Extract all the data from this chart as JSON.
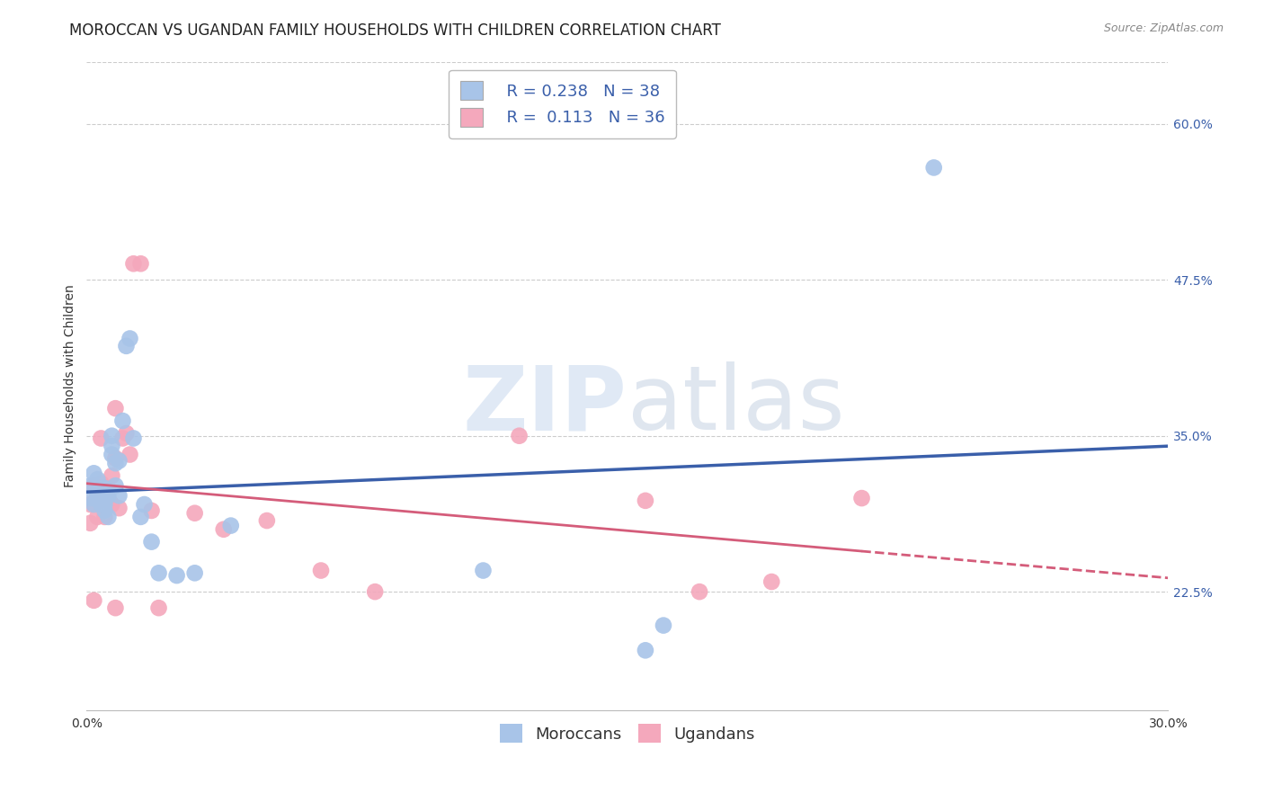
{
  "title": "MOROCCAN VS UGANDAN FAMILY HOUSEHOLDS WITH CHILDREN CORRELATION CHART",
  "source": "Source: ZipAtlas.com",
  "ylabel": "Family Households with Children",
  "xlim": [
    0.0,
    0.3
  ],
  "ylim": [
    0.13,
    0.65
  ],
  "xticks": [
    0.0,
    0.05,
    0.1,
    0.15,
    0.2,
    0.25,
    0.3
  ],
  "xticklabels": [
    "0.0%",
    "",
    "",
    "",
    "",
    "",
    "30.0%"
  ],
  "yticks": [
    0.225,
    0.35,
    0.475,
    0.6
  ],
  "yticklabels": [
    "22.5%",
    "35.0%",
    "47.5%",
    "60.0%"
  ],
  "moroccan_color": "#a8c4e8",
  "ugandan_color": "#f4a8bc",
  "moroccan_line_color": "#3a5faa",
  "ugandan_line_color": "#d45c7a",
  "background_color": "#ffffff",
  "grid_color": "#cccccc",
  "legend_R_moroccan": "0.238",
  "legend_N_moroccan": "38",
  "legend_R_ugandan": "0.113",
  "legend_N_ugandan": "36",
  "legend_text_color": "#3a5faa",
  "moroccan_x": [
    0.001,
    0.001,
    0.002,
    0.002,
    0.003,
    0.003,
    0.003,
    0.004,
    0.004,
    0.004,
    0.005,
    0.005,
    0.005,
    0.005,
    0.006,
    0.006,
    0.007,
    0.007,
    0.007,
    0.008,
    0.008,
    0.009,
    0.009,
    0.01,
    0.011,
    0.012,
    0.013,
    0.015,
    0.016,
    0.018,
    0.02,
    0.025,
    0.03,
    0.04,
    0.11,
    0.155,
    0.235,
    0.16
  ],
  "moroccan_y": [
    0.3,
    0.31,
    0.295,
    0.32,
    0.3,
    0.305,
    0.315,
    0.295,
    0.3,
    0.308,
    0.29,
    0.295,
    0.3,
    0.308,
    0.285,
    0.302,
    0.335,
    0.342,
    0.35,
    0.31,
    0.328,
    0.33,
    0.302,
    0.362,
    0.422,
    0.428,
    0.348,
    0.285,
    0.295,
    0.265,
    0.24,
    0.238,
    0.24,
    0.278,
    0.242,
    0.178,
    0.565,
    0.198
  ],
  "ugandan_x": [
    0.001,
    0.001,
    0.002,
    0.003,
    0.003,
    0.004,
    0.004,
    0.005,
    0.005,
    0.006,
    0.006,
    0.007,
    0.007,
    0.008,
    0.008,
    0.009,
    0.01,
    0.011,
    0.012,
    0.013,
    0.015,
    0.018,
    0.02,
    0.03,
    0.038,
    0.05,
    0.065,
    0.08,
    0.12,
    0.155,
    0.17,
    0.19,
    0.215,
    0.002,
    0.004,
    0.008
  ],
  "ugandan_y": [
    0.28,
    0.295,
    0.31,
    0.285,
    0.302,
    0.298,
    0.312,
    0.285,
    0.302,
    0.3,
    0.308,
    0.295,
    0.318,
    0.372,
    0.332,
    0.292,
    0.348,
    0.352,
    0.335,
    0.488,
    0.488,
    0.29,
    0.212,
    0.288,
    0.275,
    0.282,
    0.242,
    0.225,
    0.35,
    0.298,
    0.225,
    0.233,
    0.3,
    0.218,
    0.348,
    0.212
  ],
  "watermark_zip": "ZIP",
  "watermark_atlas": "atlas",
  "title_fontsize": 12,
  "axis_label_fontsize": 10,
  "tick_fontsize": 10,
  "legend_fontsize": 13
}
